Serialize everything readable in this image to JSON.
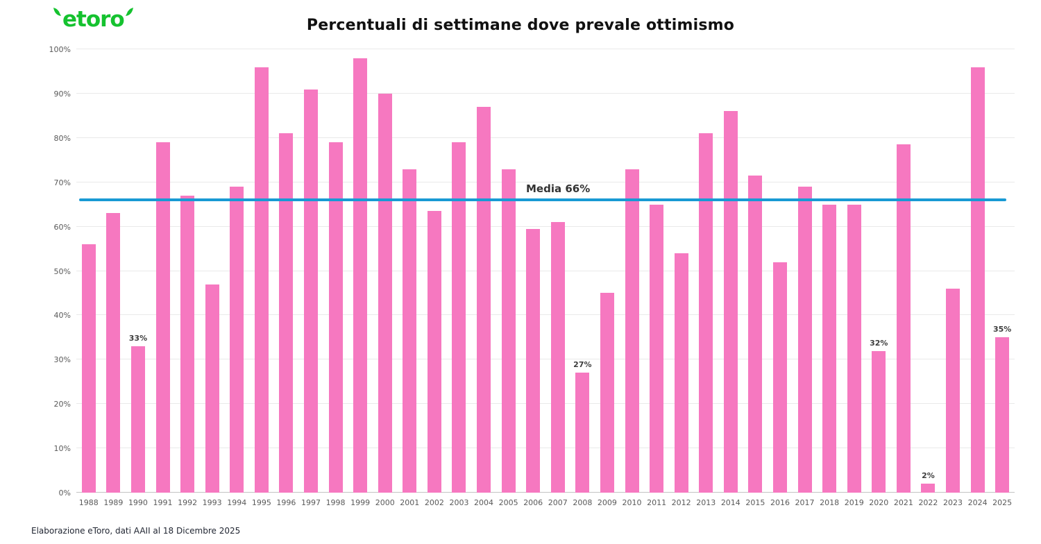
{
  "header": {
    "logo_text": "etoro",
    "title": "Percentuali di settimane dove prevale ottimismo"
  },
  "footer": {
    "source": "Elaborazione eToro, dati AAII al 18 Dicembre 2025"
  },
  "colors": {
    "bar_pink": "#f678c0",
    "media_line_blue": "#189ad4",
    "logo_green": "#15c22f",
    "gridline": "#e9e9e9"
  },
  "chart_data": {
    "type": "bar",
    "title": "Percentuali di settimane dove prevale ottimismo",
    "categories": [
      "1988",
      "1989",
      "1990",
      "1991",
      "1992",
      "1993",
      "1994",
      "1995",
      "1996",
      "1997",
      "1998",
      "1999",
      "2000",
      "2001",
      "2002",
      "2003",
      "2004",
      "2005",
      "2006",
      "2007",
      "2008",
      "2009",
      "2010",
      "2011",
      "2012",
      "2013",
      "2014",
      "2015",
      "2016",
      "2017",
      "2018",
      "2019",
      "2020",
      "2021",
      "2022",
      "2023",
      "2024",
      "2025"
    ],
    "values": [
      56,
      63,
      33,
      79,
      67,
      47,
      69,
      96,
      81,
      91,
      79,
      98,
      90,
      73,
      63.5,
      79,
      87,
      73,
      59.5,
      61,
      27,
      45,
      73,
      65,
      54,
      81,
      86,
      71.5,
      52,
      69,
      65,
      65,
      32,
      78.5,
      2,
      46,
      96,
      35
    ],
    "bar_labels": [
      "",
      "",
      "33%",
      "",
      "",
      "",
      "",
      "",
      "",
      "",
      "",
      "",
      "",
      "",
      "",
      "",
      "",
      "",
      "",
      "",
      "27%",
      "",
      "",
      "",
      "",
      "",
      "",
      "",
      "",
      "",
      "",
      "",
      "32%",
      "",
      "2%",
      "",
      "",
      "35%"
    ],
    "xlabel": "",
    "ylabel": "",
    "ylim": [
      0,
      100
    ],
    "ytick_step": 10,
    "ytick_suffix": "%",
    "grid": true,
    "legend": "none",
    "reference_line": {
      "value": 66,
      "label": "Media 66%"
    }
  }
}
